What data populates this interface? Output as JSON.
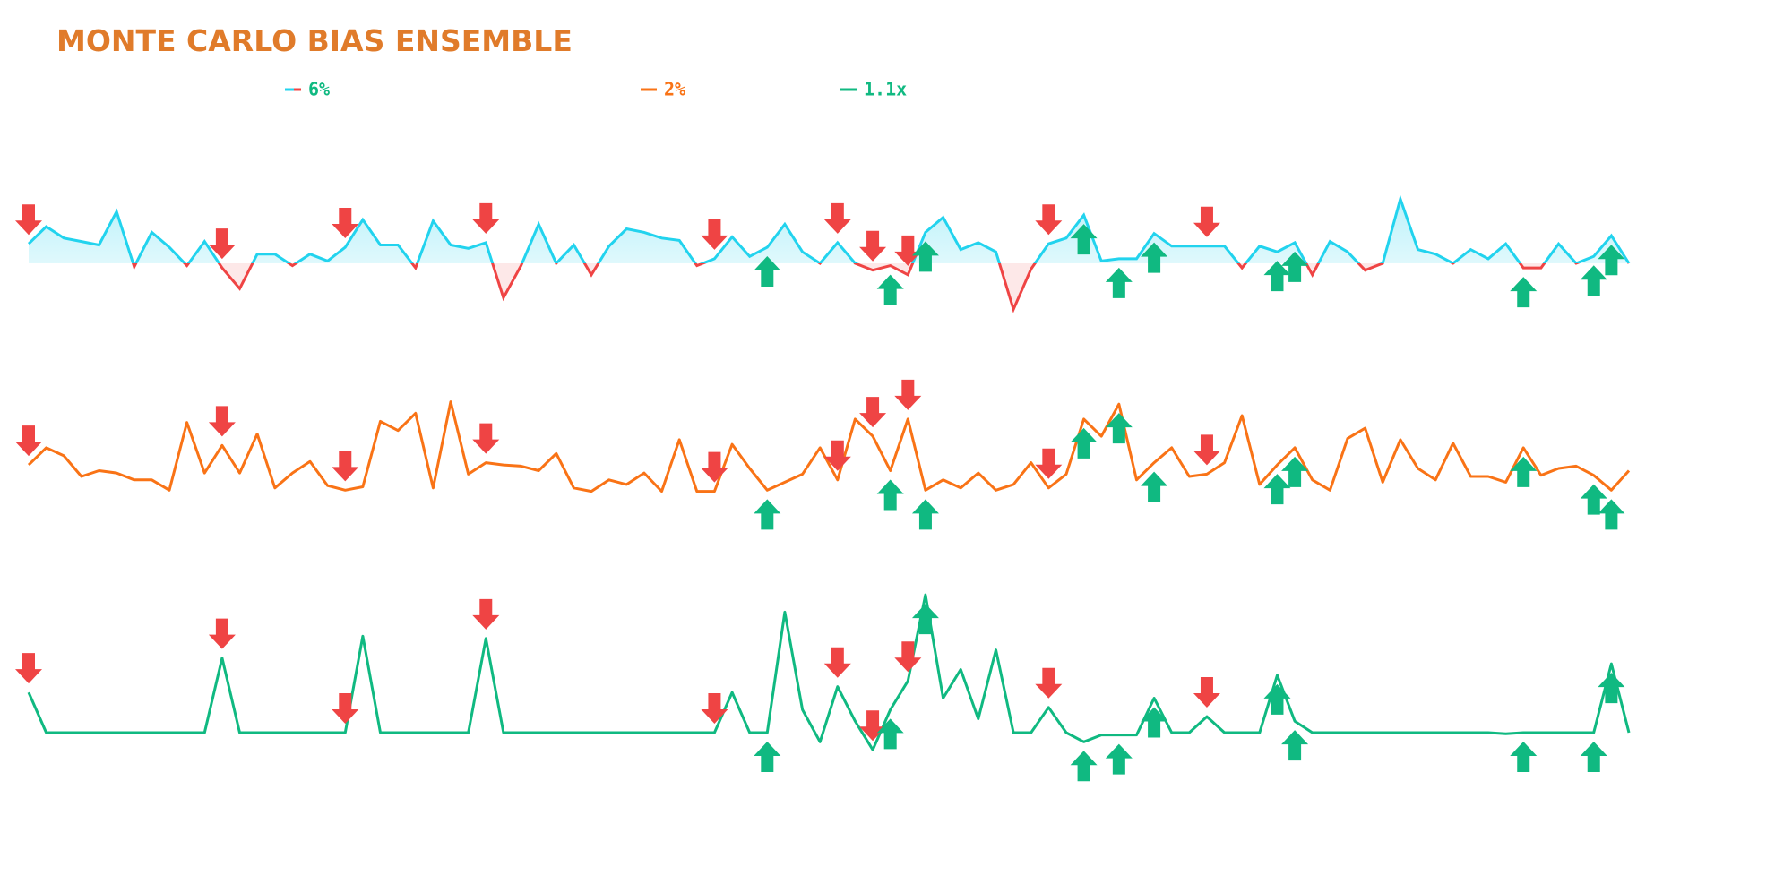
{
  "chart_data": {
    "type": "line",
    "title": "MONTE CARLO BIAS ENSEMBLE",
    "series": [
      {
        "name": "6%",
        "color": "#22d3ee",
        "down_color": "#ef4444",
        "fill": true,
        "values": [
          17,
          32,
          22,
          19,
          16,
          45,
          -3,
          27,
          14,
          -2,
          19,
          -4,
          -22,
          8,
          8,
          -2,
          8,
          2,
          14,
          38,
          16,
          16,
          -4,
          37,
          16,
          13,
          18,
          -30,
          -2,
          34,
          0,
          16,
          -10,
          15,
          30,
          27,
          22,
          20,
          -2,
          4,
          23,
          6,
          14,
          34,
          10,
          0,
          18,
          0,
          -6,
          -2,
          -10,
          27,
          40,
          12,
          18,
          10,
          -40,
          -5,
          17,
          22,
          42,
          2,
          4,
          4,
          26,
          15,
          15,
          15,
          15,
          -4,
          15,
          10,
          18,
          -10,
          19,
          10,
          -6,
          0,
          56,
          12,
          8,
          0,
          12,
          4,
          17,
          -4,
          -4,
          17,
          0,
          6,
          24,
          0
        ]
      },
      {
        "name": "2%",
        "color": "#f97316",
        "values": [
          35,
          50,
          43,
          25,
          30,
          28,
          22,
          22,
          13,
          72,
          28,
          52,
          28,
          62,
          15,
          28,
          38,
          17,
          13,
          16,
          73,
          65,
          80,
          15,
          90,
          27,
          37,
          35,
          34,
          30,
          45,
          15,
          12,
          22,
          18,
          28,
          12,
          57,
          12,
          12,
          53,
          32,
          13,
          20,
          27,
          50,
          22,
          75,
          60,
          30,
          75,
          13,
          22,
          15,
          28,
          13,
          18,
          37,
          15,
          27,
          75,
          60,
          88,
          22,
          37,
          50,
          25,
          27,
          37,
          78,
          18,
          35,
          50,
          22,
          13,
          58,
          67,
          20,
          57,
          32,
          22,
          54,
          25,
          25,
          20,
          50,
          26,
          32,
          34,
          26,
          13,
          30
        ]
      },
      {
        "name": "1.1x",
        "color": "#10b981",
        "values": [
          35,
          0,
          0,
          0,
          0,
          0,
          0,
          0,
          0,
          0,
          0,
          65,
          0,
          0,
          0,
          0,
          0,
          0,
          0,
          84,
          0,
          0,
          0,
          0,
          0,
          0,
          82,
          0,
          0,
          0,
          0,
          0,
          0,
          0,
          0,
          0,
          0,
          0,
          0,
          0,
          35,
          0,
          0,
          105,
          20,
          -8,
          40,
          10,
          -15,
          20,
          45,
          120,
          30,
          55,
          12,
          72,
          0,
          0,
          22,
          0,
          -8,
          -2,
          -2,
          -2,
          30,
          0,
          0,
          14,
          0,
          0,
          0,
          50,
          10,
          0,
          0,
          0,
          0,
          0,
          0,
          0,
          0,
          0,
          0,
          0,
          -1,
          0,
          0,
          0,
          0,
          0,
          60,
          0
        ]
      }
    ],
    "signals": {
      "sell": [
        0,
        11,
        18,
        26,
        39,
        46,
        48,
        50,
        58,
        67
      ],
      "buy": [
        42,
        49,
        51,
        60,
        62,
        64,
        71,
        72,
        85,
        89,
        90
      ]
    },
    "sell_color": "#ef4444",
    "buy_color": "#10b981"
  }
}
